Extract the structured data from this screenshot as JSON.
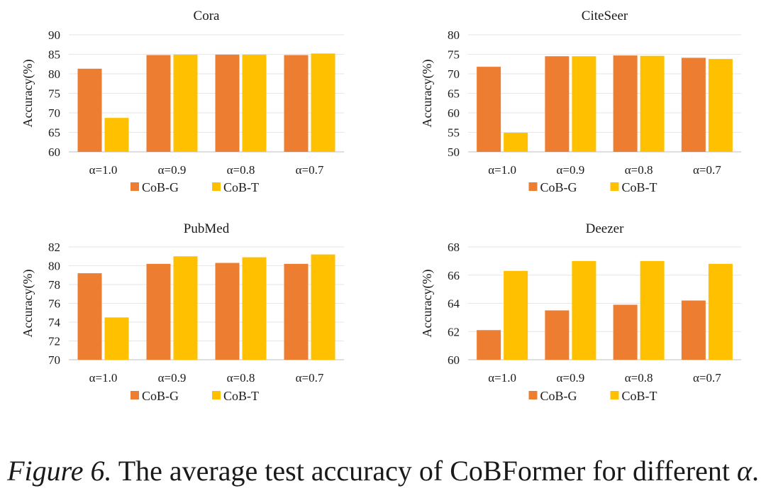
{
  "chart_data": [
    {
      "type": "bar",
      "title": "Cora",
      "ylabel": "Accuracy(%)",
      "xlabel": "",
      "categories": [
        "α=1.0",
        "α=0.9",
        "α=0.8",
        "α=0.7"
      ],
      "ylim": [
        60,
        90
      ],
      "yticks": [
        60,
        65,
        70,
        75,
        80,
        85,
        90
      ],
      "legend": "bottom",
      "grid": true,
      "series": [
        {
          "name": "CoB-G",
          "color": "#ED7D31",
          "values": [
            81.3,
            84.8,
            84.9,
            84.8
          ]
        },
        {
          "name": "CoB-T",
          "color": "#FFC000",
          "values": [
            68.7,
            84.9,
            84.9,
            85.2
          ]
        }
      ]
    },
    {
      "type": "bar",
      "title": "CiteSeer",
      "ylabel": "Accuracy(%)",
      "xlabel": "",
      "categories": [
        "α=1.0",
        "α=0.9",
        "α=0.8",
        "α=0.7"
      ],
      "ylim": [
        50,
        80
      ],
      "yticks": [
        50,
        55,
        60,
        65,
        70,
        75,
        80
      ],
      "legend": "bottom",
      "grid": true,
      "series": [
        {
          "name": "CoB-G",
          "color": "#ED7D31",
          "values": [
            71.8,
            74.5,
            74.7,
            74.1
          ]
        },
        {
          "name": "CoB-T",
          "color": "#FFC000",
          "values": [
            54.9,
            74.5,
            74.6,
            73.8
          ]
        }
      ]
    },
    {
      "type": "bar",
      "title": "PubMed",
      "ylabel": "Accuracy(%)",
      "xlabel": "",
      "categories": [
        "α=1.0",
        "α=0.9",
        "α=0.8",
        "α=0.7"
      ],
      "ylim": [
        70,
        82
      ],
      "yticks": [
        70,
        72,
        74,
        76,
        78,
        80,
        82
      ],
      "legend": "bottom",
      "grid": true,
      "series": [
        {
          "name": "CoB-G",
          "color": "#ED7D31",
          "values": [
            79.2,
            80.2,
            80.3,
            80.2
          ]
        },
        {
          "name": "CoB-T",
          "color": "#FFC000",
          "values": [
            74.5,
            81.0,
            80.9,
            81.2
          ]
        }
      ]
    },
    {
      "type": "bar",
      "title": "Deezer",
      "ylabel": "Accuracy(%)",
      "xlabel": "",
      "categories": [
        "α=1.0",
        "α=0.9",
        "α=0.8",
        "α=0.7"
      ],
      "ylim": [
        60,
        68
      ],
      "yticks": [
        60,
        62,
        64,
        66,
        68
      ],
      "legend": "bottom",
      "grid": true,
      "series": [
        {
          "name": "CoB-G",
          "color": "#ED7D31",
          "values": [
            62.1,
            63.5,
            63.9,
            64.2
          ]
        },
        {
          "name": "CoB-T",
          "color": "#FFC000",
          "values": [
            66.3,
            67.0,
            67.0,
            66.8
          ]
        }
      ]
    }
  ],
  "caption": {
    "figure_label": "Figure 6.",
    "text": " The average test accuracy of CoBFormer for different ",
    "symbol": "α",
    "end": "."
  }
}
